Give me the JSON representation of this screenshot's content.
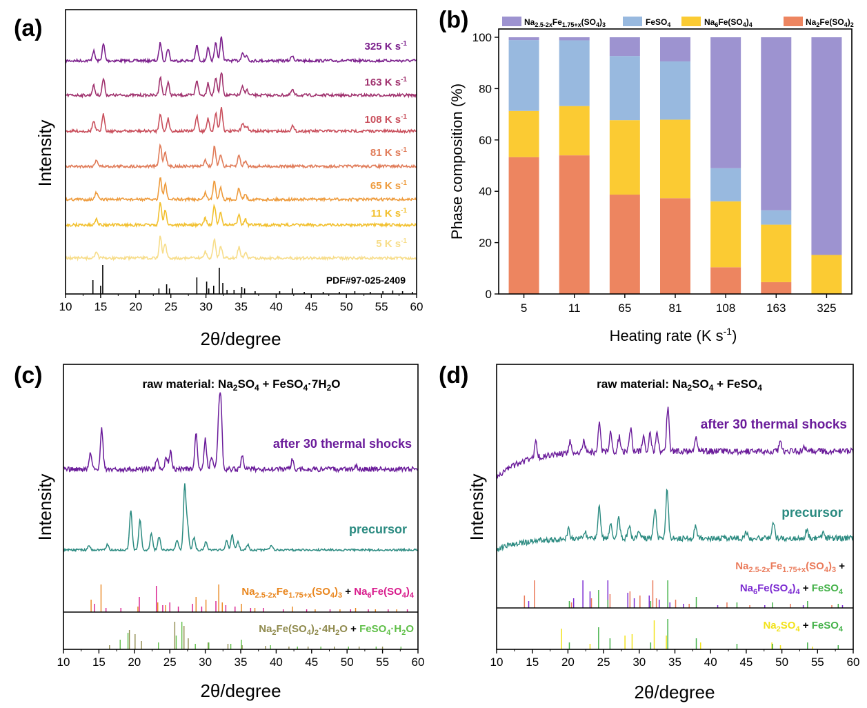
{
  "panels": {
    "a": "(a)",
    "b": "(b)",
    "c": "(c)",
    "d": "(d)"
  },
  "chart_data": [
    {
      "id": "a",
      "type": "line",
      "title": "",
      "xlabel": "2θ/degree",
      "ylabel": "Intensity",
      "xlim": [
        10,
        60
      ],
      "xticks": [
        10,
        15,
        20,
        25,
        30,
        35,
        40,
        45,
        50,
        55,
        60
      ],
      "series": [
        {
          "name": "325 K s-1",
          "label_main": "325 K s",
          "label_sup": "-1",
          "color": "#7b1f8c"
        },
        {
          "name": "163 K s-1",
          "label_main": "163 K s",
          "label_sup": "-1",
          "color": "#a0326e"
        },
        {
          "name": "108 K s-1",
          "label_main": "108 K s",
          "label_sup": "-1",
          "color": "#c94f5c"
        },
        {
          "name": "81 K s-1",
          "label_main": "81 K s",
          "label_sup": "-1",
          "color": "#e07b58"
        },
        {
          "name": "65 K s-1",
          "label_main": "65 K s",
          "label_sup": "-1",
          "color": "#ee9b3c"
        },
        {
          "name": "11 K s-1",
          "label_main": "11 K s",
          "label_sup": "-1",
          "color": "#f2c02e"
        },
        {
          "name": "5 K s-1",
          "label_main": "5 K s",
          "label_sup": "-1",
          "color": "#f7dd8a"
        }
      ],
      "reference": {
        "name": "PDF#97-025-2409",
        "color": "#000000"
      }
    },
    {
      "id": "b",
      "type": "bar",
      "stacked": true,
      "title": "",
      "xlabel_main": "Heating rate (K s",
      "xlabel_sup": "-1",
      "xlabel_end": ")",
      "ylabel": "Phase composition (%)",
      "ylim": [
        0,
        100
      ],
      "yticks": [
        0,
        20,
        40,
        60,
        80,
        100
      ],
      "categories": [
        "5",
        "11",
        "65",
        "81",
        "108",
        "163",
        "325"
      ],
      "series": [
        {
          "name": "Na2Fe(SO4)2",
          "color": "#ed8560",
          "values": [
            53.3,
            54.0,
            38.7,
            37.3,
            10.4,
            4.6,
            0
          ]
        },
        {
          "name": "Na6Fe(SO4)4",
          "color": "#fbcb33",
          "values": [
            18.0,
            19.2,
            29.0,
            30.6,
            25.7,
            22.4,
            15.2
          ]
        },
        {
          "name": "FeSO4",
          "color": "#98b9df",
          "values": [
            27.6,
            25.6,
            25.0,
            22.7,
            12.9,
            5.6,
            0
          ]
        },
        {
          "name": "Na2.5-2xFe1.75+x(SO4)3",
          "color": "#9d93d0",
          "values": [
            1.1,
            1.2,
            7.3,
            9.4,
            51.0,
            67.4,
            84.8
          ]
        }
      ]
    },
    {
      "id": "c",
      "type": "line",
      "title_main": "raw material: Na",
      "xlabel": "2θ/degree",
      "ylabel": "Intensity",
      "xlim": [
        10,
        60
      ],
      "xticks": [
        10,
        15,
        20,
        25,
        30,
        35,
        40,
        45,
        50,
        55,
        60
      ],
      "series": [
        {
          "name": "after 30 thermal shocks",
          "color": "#6a1b9a"
        },
        {
          "name": "precursor",
          "color": "#2a8a80"
        }
      ],
      "references": [
        {
          "name": "Na2.5-2xFe1.75+x(SO4)3",
          "color": "#e9851c"
        },
        {
          "name": "Na6Fe(SO4)4",
          "color": "#d81b8c"
        },
        {
          "name": "Na2Fe(SO4)2·4H2O",
          "color": "#8f8a4d"
        },
        {
          "name": "FeSO4·H2O",
          "color": "#5fbf48"
        }
      ]
    },
    {
      "id": "d",
      "type": "line",
      "xlabel": "2θ/degree",
      "ylabel": "Intensity",
      "xlim": [
        10,
        60
      ],
      "xticks": [
        10,
        15,
        20,
        25,
        30,
        35,
        40,
        45,
        50,
        55,
        60
      ],
      "series": [
        {
          "name": "after 30 thermal shocks",
          "color": "#6a1b9a"
        },
        {
          "name": "precursor",
          "color": "#2a8a80"
        }
      ],
      "references": [
        {
          "name": "Na2.5-2xFe1.75+x(SO4)3",
          "color": "#ea7a5a"
        },
        {
          "name": "Na6Fe(SO4)4",
          "color": "#7b2ad1"
        },
        {
          "name": "FeSO4",
          "color": "#45b24a"
        },
        {
          "name": "Na2SO4",
          "color": "#f2e21a"
        }
      ]
    }
  ],
  "labels": {
    "pdf_ref": "PDF#97-025-2409",
    "raw_c": "raw material: Na2SO4 + FeSO4·7H2O",
    "raw_d": "raw material: Na2SO4 + FeSO4",
    "after": "after 30 thermal shocks",
    "precursor": "precursor",
    "plus": "+",
    "heating_rate": "Heating rate (K s-1)"
  }
}
